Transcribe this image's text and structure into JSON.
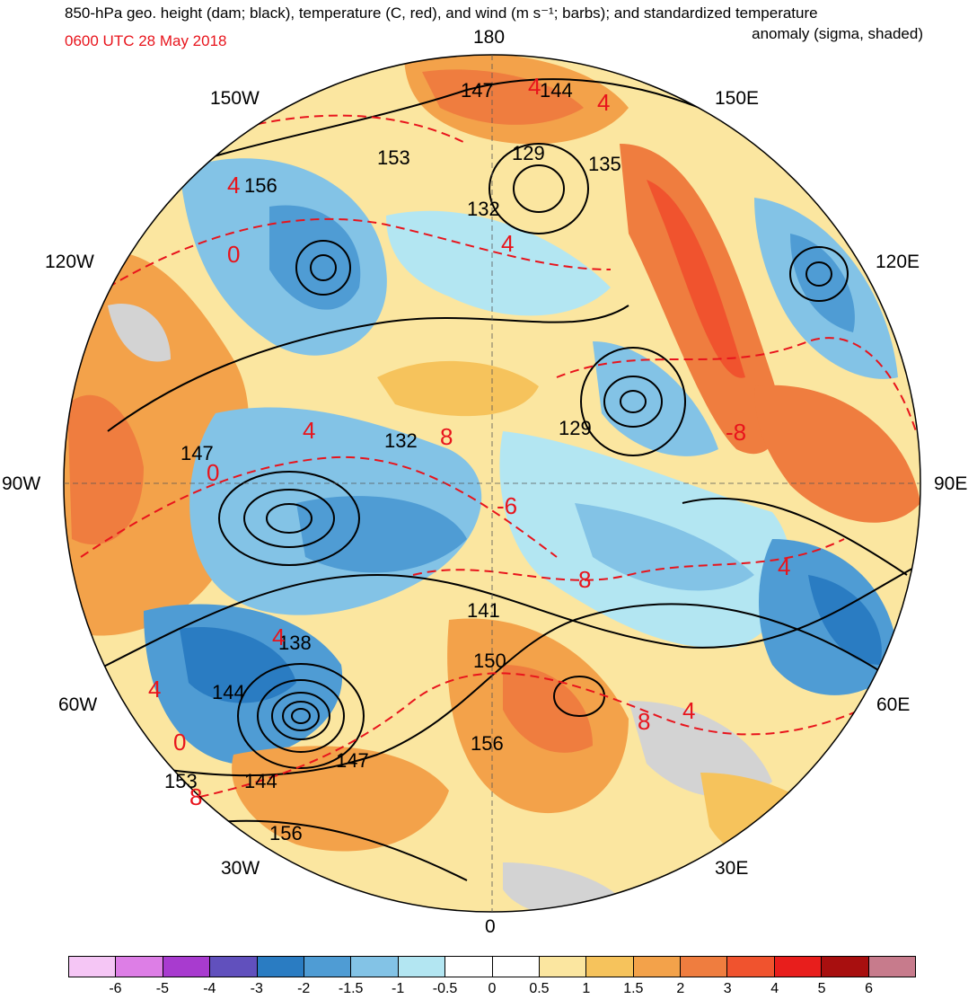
{
  "title": {
    "line1": "850-hPa geo. height (dam; black), temperature (C, red), and wind (m s⁻¹; barbs); and standardized temperature",
    "line2": "anomaly (sigma, shaded)",
    "timestamp": "0600 UTC 28 May 2018",
    "timestamp_color": "#e8141c"
  },
  "longitude_labels": {
    "top": "180",
    "bottom": "0",
    "left": "90W",
    "right": "90E",
    "upper_left": "150W",
    "upper_right": "150E",
    "mid_left": "120W",
    "mid_right": "120E",
    "lower_left": "60W",
    "lower_right": "60E",
    "bottom_left": "30W",
    "bottom_right": "30E"
  },
  "height_contour_labels": [
    "147",
    "144",
    "153",
    "156",
    "129",
    "135",
    "132",
    "132",
    "129",
    "147",
    "138",
    "144",
    "141",
    "150",
    "156",
    "147",
    "153",
    "144",
    "156"
  ],
  "temperature_contour_labels": [
    "4",
    "4",
    "4",
    "0",
    "4",
    "8",
    "4",
    "0",
    "-6",
    "8",
    "-8",
    "4",
    "8",
    "4",
    "4",
    "0",
    "8",
    "4"
  ],
  "colorbar": {
    "ticks": [
      "-6",
      "-5",
      "-4",
      "-3",
      "-2",
      "-1.5",
      "-1",
      "-0.5",
      "0",
      "0.5",
      "1",
      "1.5",
      "2",
      "3",
      "4",
      "5",
      "6"
    ],
    "colors": [
      "#f5c6f5",
      "#dd7ee6",
      "#a83bcf",
      "#6150bd",
      "#2a7cc2",
      "#4f9cd4",
      "#83c3e6",
      "#b3e6f2",
      "#ffffff",
      "#ffffff",
      "#fbe6a0",
      "#f6c35c",
      "#f3a24a",
      "#ef7d3f",
      "#f0532e",
      "#e81e1c",
      "#a80f0f",
      "#c77b8c"
    ]
  }
}
